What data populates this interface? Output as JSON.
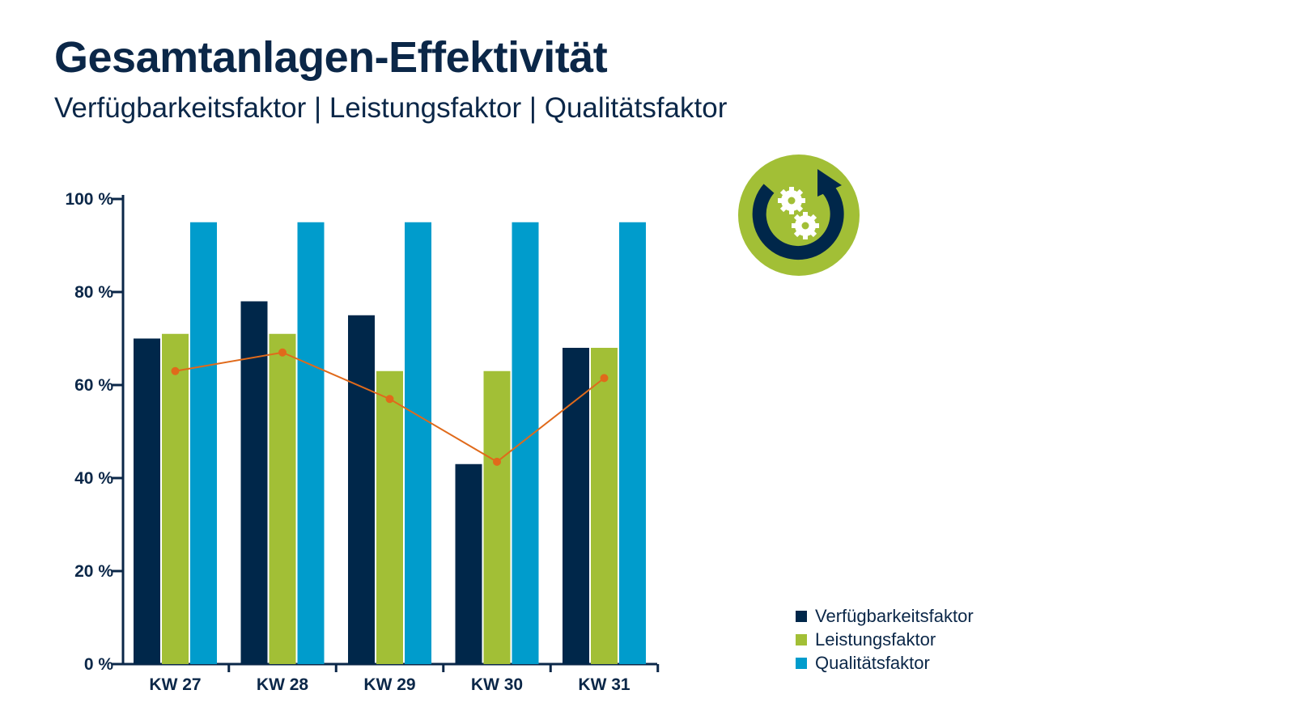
{
  "title": "Gesamtanlagen-Effektivität",
  "subtitle": "Verfügbarkeitsfaktor | Leistungsfaktor | Qualitätsfaktor",
  "icon": "gears-cycle-icon",
  "colors": {
    "navy": "#00274a",
    "green": "#a2bf36",
    "blue": "#009ccc",
    "line": "#e06a1b",
    "axis": "#0b2748"
  },
  "chart_data": {
    "type": "bar",
    "categories": [
      "KW 27",
      "KW 28",
      "KW 29",
      "KW 30",
      "KW 31"
    ],
    "series": [
      {
        "name": "Verfügbarkeitsfaktor",
        "type": "bar",
        "color": "#00274a",
        "values": [
          70,
          78,
          75,
          43,
          68
        ]
      },
      {
        "name": "Leistungsfaktor",
        "type": "bar",
        "color": "#a2bf36",
        "values": [
          71,
          71,
          63,
          63,
          68
        ]
      },
      {
        "name": "Qualitätsfaktor",
        "type": "bar",
        "color": "#009ccc",
        "values": [
          95,
          95,
          95,
          95,
          95
        ]
      },
      {
        "type": "line",
        "color": "#e06a1b",
        "values": [
          63,
          67,
          57,
          43.5,
          61.5
        ]
      }
    ],
    "yticks": [
      "0 %",
      "20 %",
      "40 %",
      "60 %",
      "80 %",
      "100 %"
    ],
    "ylim": [
      0,
      100
    ],
    "grid": false,
    "legend": "bottom-right"
  }
}
